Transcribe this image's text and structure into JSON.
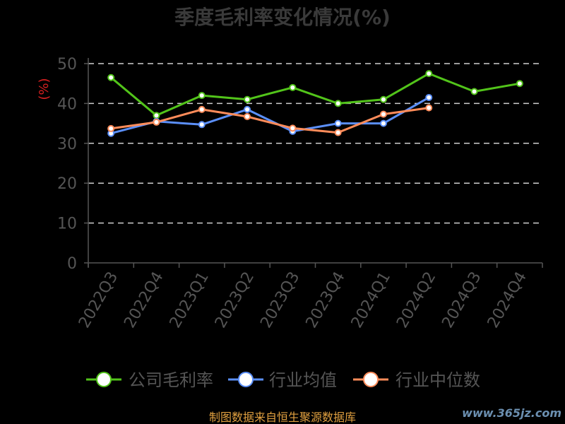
{
  "chart_data": {
    "type": "line",
    "title": "季度毛利率变化情况(%)",
    "ylabel": "(%)",
    "xlabel": "",
    "ylim": [
      0,
      50
    ],
    "yticks": [
      0,
      10,
      20,
      30,
      40,
      50
    ],
    "grid": true,
    "legend_position": "bottom",
    "categories": [
      "2022Q3",
      "2022Q4",
      "2023Q1",
      "2023Q2",
      "2023Q3",
      "2023Q4",
      "2024Q1",
      "2024Q2",
      "2024Q3",
      "2024Q4"
    ],
    "series": [
      {
        "name": "公司毛利率",
        "color": "#52c41a",
        "values": [
          46.5,
          37.0,
          42.0,
          41.0,
          44.0,
          40.0,
          41.0,
          47.5,
          43.0,
          45.0
        ]
      },
      {
        "name": "行业均值",
        "color": "#5b8ff9",
        "values": [
          32.5,
          35.5,
          34.7,
          38.5,
          33.0,
          35.0,
          35.0,
          41.5,
          null,
          null
        ]
      },
      {
        "name": "行业中位数",
        "color": "#ff8c5a",
        "values": [
          33.7,
          35.3,
          38.5,
          36.7,
          33.8,
          32.7,
          37.3,
          38.9,
          null,
          null
        ]
      }
    ]
  },
  "footer": {
    "source": "制图数据来自恒生聚源数据库",
    "watermark": "www.365jz.com"
  }
}
